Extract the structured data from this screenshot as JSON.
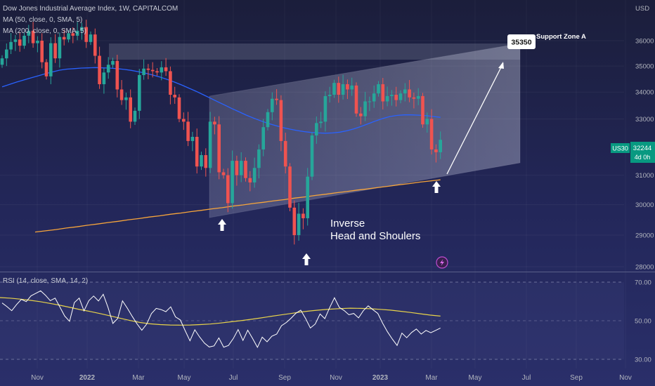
{
  "header": {
    "title": "Dow Jones Industrial Average Index, 1W, CAPITALCOM",
    "ma50": "MA (50, close, 0, SMA, 5)",
    "ma200": "MA (200, close, 0, SMA, 5)",
    "rsi": "RSI (14, close, SMA, 14, 2)"
  },
  "price_axis": {
    "currency": "USD",
    "ticks": [
      "36000",
      "35000",
      "34000",
      "33000",
      "31000",
      "30000",
      "29000",
      "28000"
    ],
    "symbol_label": "US30",
    "last_price": "32244",
    "countdown": "4d 0h"
  },
  "rsi_axis": {
    "ticks": [
      "70.00",
      "50.00",
      "30.00"
    ]
  },
  "time_axis": {
    "ticks": [
      "Nov",
      "2022",
      "Mar",
      "May",
      "Jul",
      "Sep",
      "Nov",
      "2023",
      "Mar",
      "May",
      "Jul",
      "Sep",
      "Nov"
    ]
  },
  "annotations": {
    "target_label": "35350",
    "zone_label": "Support Zone A",
    "pattern_line1": "Inverse",
    "pattern_line2": "Head and Shoulers"
  },
  "colors": {
    "up": "#26a69a",
    "down": "#ef5350",
    "ma50": "#2962ff",
    "ma200": "#f7a53b",
    "rsi": "#ffffff",
    "rsi_ma": "#e8d34a",
    "axis_badge": "#089981"
  },
  "chart_data": [
    {
      "type": "candlestick",
      "title": "Dow Jones Industrial Average Index, 1W, CAPITALCOM",
      "x_ticks": [
        "Nov",
        "2022",
        "Mar",
        "May",
        "Jul",
        "Sep",
        "Nov",
        "2023",
        "Mar",
        "May",
        "Jul",
        "Sep",
        "Nov"
      ],
      "y_ticks": [
        36000,
        35000,
        34000,
        33000,
        31000,
        30000,
        29000,
        28000
      ],
      "y_scale": "log",
      "ylim": [
        27900,
        36800
      ],
      "closes": [
        35300,
        35650,
        35950,
        36050,
        35800,
        36200,
        36400,
        35900,
        36000,
        35150,
        34600,
        35900,
        35300,
        36150,
        36050,
        36300,
        36200,
        36400,
        36550,
        35950,
        36250,
        35400,
        34300,
        34750,
        35050,
        35200,
        34100,
        33700,
        33800,
        32900,
        33300,
        34650,
        34900,
        34850,
        34800,
        34750,
        34950,
        34800,
        33900,
        33800,
        33000,
        32900,
        32200,
        32350,
        31300,
        31700,
        31250,
        32900,
        32800,
        31100,
        31000,
        30050,
        31500,
        31000,
        31500,
        30900,
        30750,
        31250,
        31900,
        32700,
        33250,
        33750,
        33700,
        32200,
        31300,
        29900,
        29000,
        29700,
        29550,
        30950,
        32400,
        32850,
        32900,
        33850,
        33900,
        34350,
        33900,
        34300,
        34100,
        34250,
        33200,
        33100,
        33650,
        33650,
        33950,
        34300,
        33650,
        33850,
        33900,
        33700,
        33950,
        34100,
        33800,
        33750,
        33850,
        32800,
        33000,
        31900,
        31800,
        32244
      ],
      "ma50": [
        34200,
        34290,
        34380,
        34460,
        34540,
        34620,
        34700,
        34770,
        34840,
        34880,
        34900,
        34920,
        34930,
        34940,
        34930,
        34920,
        34900,
        34870,
        34830,
        34780,
        34720,
        34650,
        34570,
        34480,
        34380,
        34270,
        34150,
        34030,
        33900,
        33770,
        33640,
        33510,
        33380,
        33260,
        33140,
        33030,
        32930,
        32840,
        32760,
        32690,
        32630,
        32580,
        32540,
        32510,
        32490,
        32480,
        32490,
        32520,
        32570,
        32640,
        32730,
        32830,
        32930,
        33020,
        33090,
        33130,
        33150,
        33150,
        33140,
        33120,
        33090,
        33060
      ],
      "ma200": [
        29100,
        29140,
        29180,
        29230,
        29270,
        29320,
        29360,
        29410,
        29450,
        29500,
        29540,
        29590,
        29630,
        29680,
        29720,
        29770,
        29810,
        29860,
        29900,
        29950,
        29990,
        30040,
        30080,
        30130,
        30170,
        30220,
        30260,
        30310,
        30350,
        30400,
        30440,
        30490,
        30530,
        30580,
        30620,
        30670,
        30710,
        30760,
        30800,
        30840
      ],
      "rsi": [
        59.2,
        57.3,
        55.2,
        58.4,
        61.1,
        59.9,
        62.9,
        64.2,
        65.5,
        63.2,
        60.4,
        61.7,
        57.1,
        52.4,
        49.7,
        59.4,
        61.7,
        55.1,
        60.4,
        62.8,
        60.2,
        63.7,
        56.8,
        48.6,
        51.2,
        60.3,
        56.5,
        52.3,
        48.4,
        45.1,
        48.2,
        53.7,
        56.4,
        55.8,
        54.7,
        57.2,
        52.0,
        50.4,
        44.9,
        39.6,
        45.3,
        41.6,
        38.4,
        36.4,
        37.0,
        41.1,
        36.3,
        37.2,
        40.8,
        45.4,
        39.8,
        45.1,
        40.8,
        36.2,
        41.5,
        39.1,
        42.0,
        43.1,
        47.4,
        49.1,
        51.3,
        53.9,
        55.5,
        51.2,
        46.2,
        48.3,
        53.5,
        51.1,
        56.8,
        61.9,
        56.9,
        55.3,
        53.1,
        53.8,
        51.5,
        55.2,
        57.7,
        55.7,
        53.8,
        48.7,
        44.3,
        40.5,
        37.2,
        43.6,
        41.2,
        43.9,
        45.7,
        43.1,
        45.0,
        43.8,
        45.0,
        46.2
      ],
      "rsi_ma": [
        62.0,
        61.7,
        61.2,
        60.6,
        59.9,
        59.0,
        58.0,
        56.9,
        55.8,
        54.8,
        53.7,
        52.5,
        51.3,
        50.1,
        49.1,
        48.4,
        48.0,
        47.8,
        47.7,
        47.8,
        48.0,
        48.3,
        48.8,
        49.4,
        50.0,
        50.7,
        51.4,
        52.2,
        53.0,
        53.7,
        54.5,
        55.1,
        55.6,
        56.0,
        56.3,
        56.5,
        56.4,
        56.2,
        55.9,
        55.5,
        54.9,
        54.3,
        53.6,
        52.9,
        52.4
      ],
      "rsi_ylim": [
        30,
        70
      ]
    }
  ]
}
